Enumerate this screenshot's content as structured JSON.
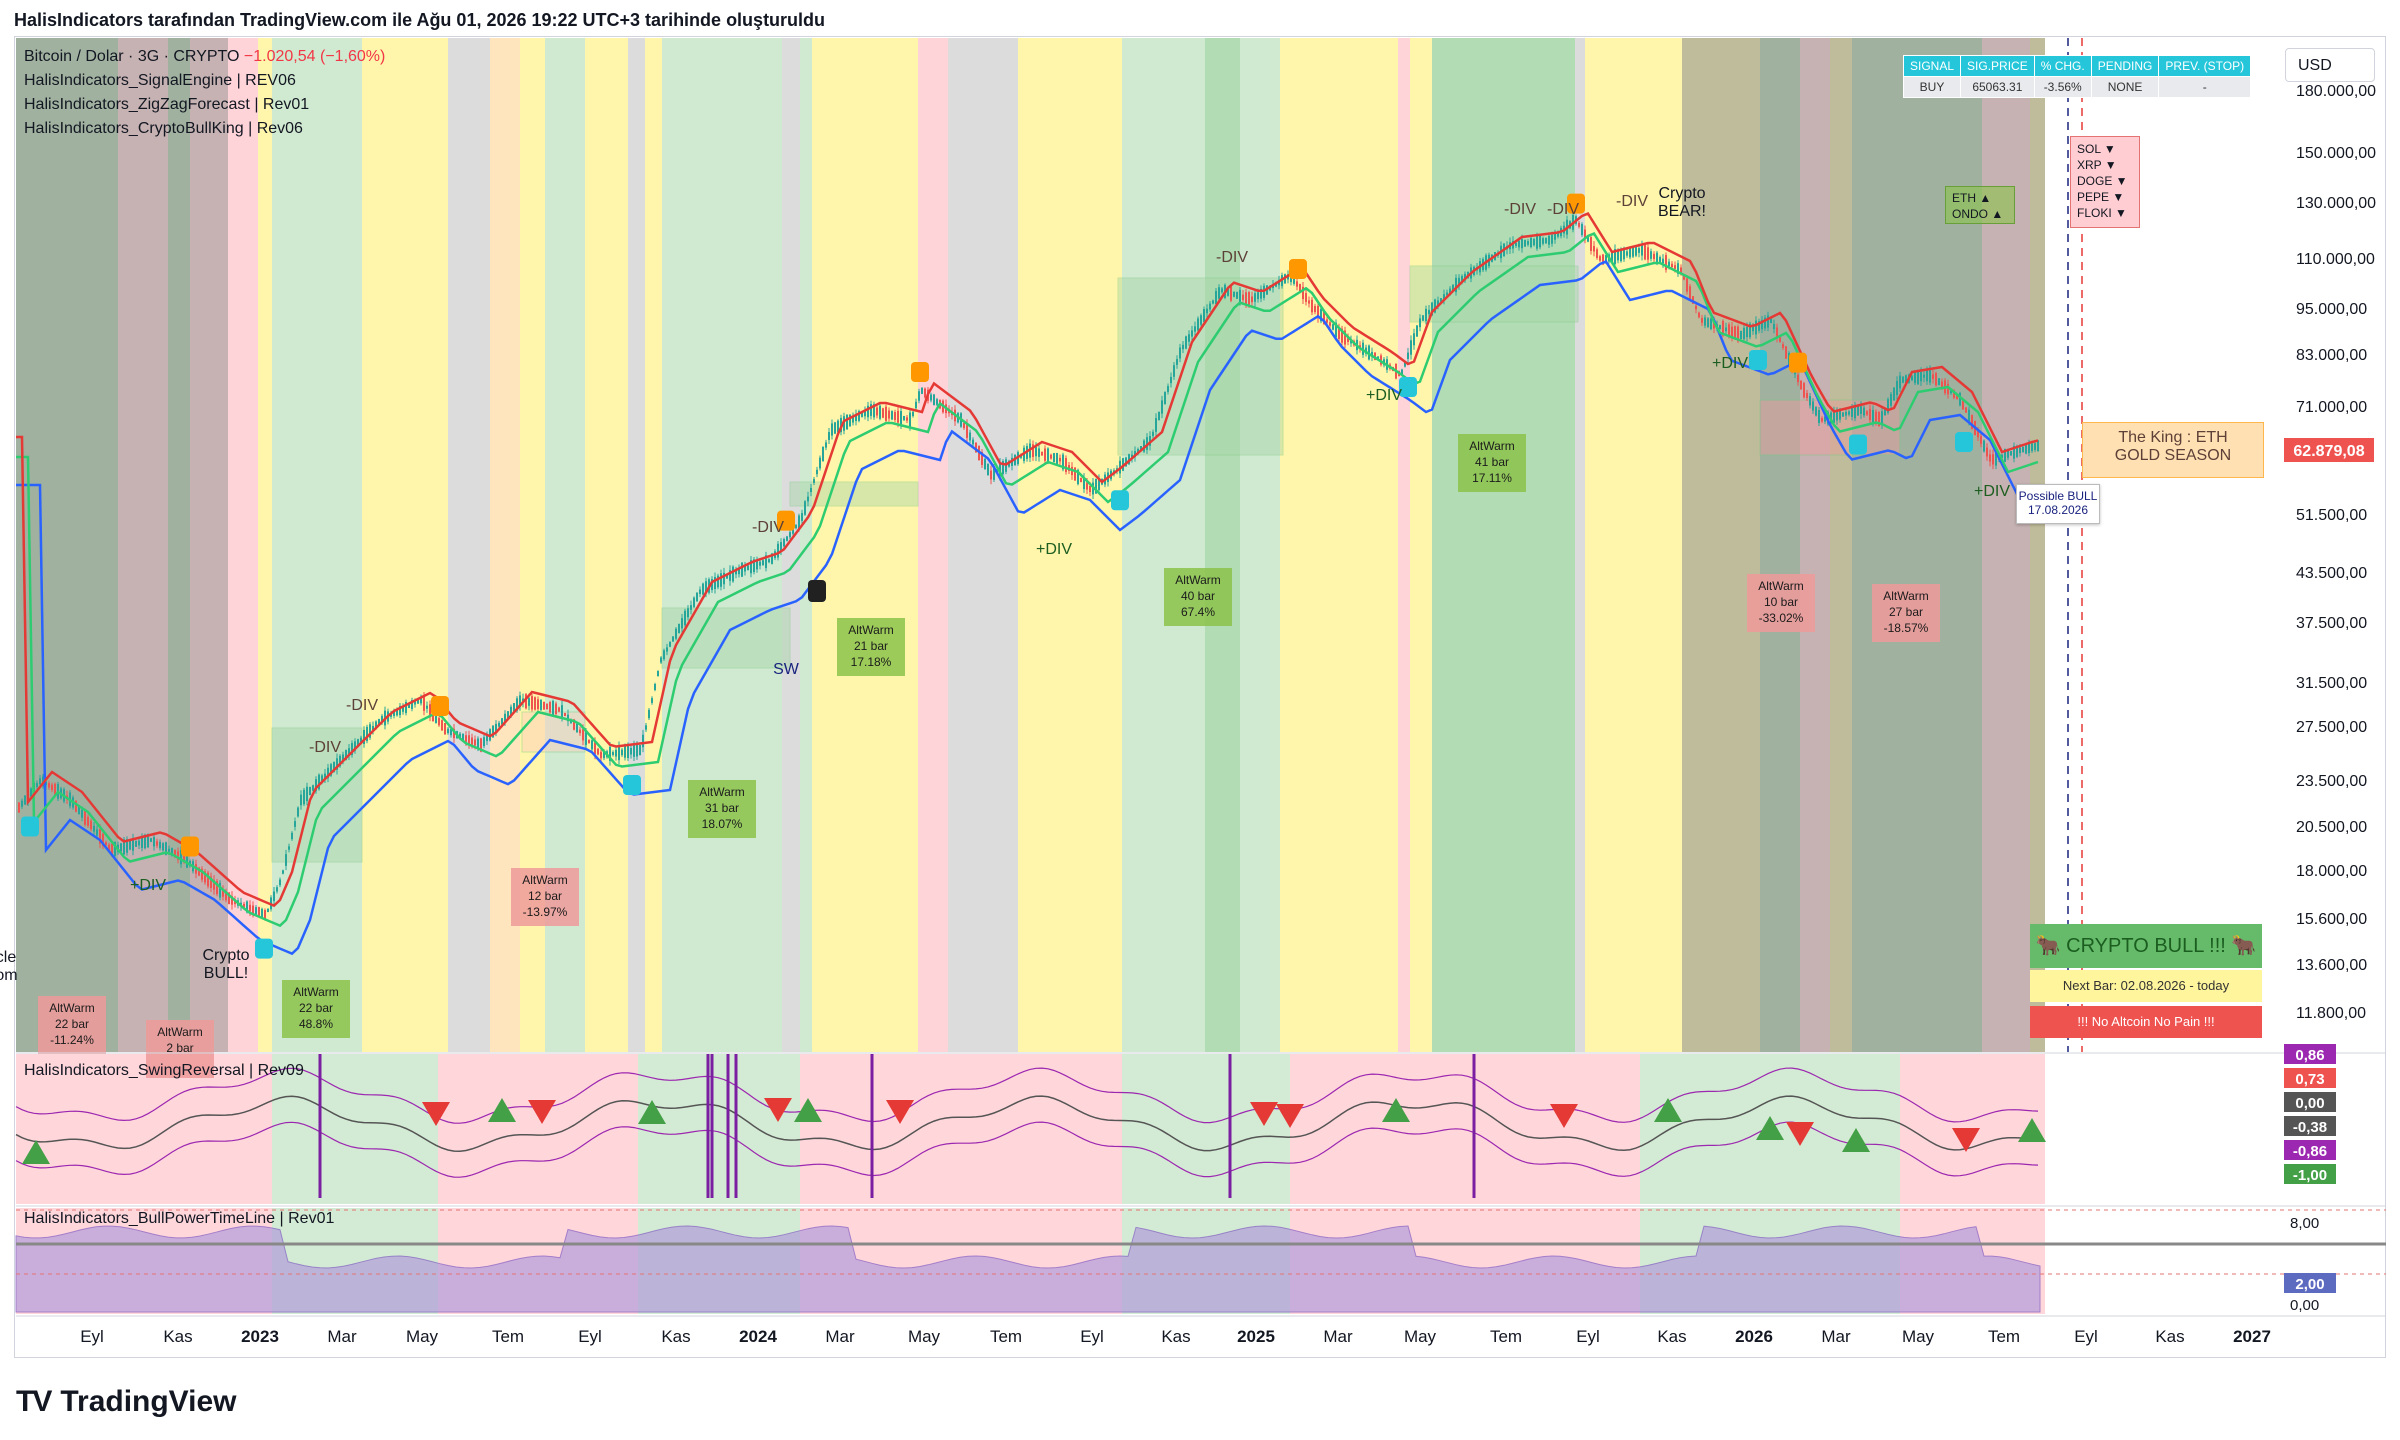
{
  "header": {
    "title": "HalisIndicators tarafından TradingView.com ile Ağu 01, 2026 19:22 UTC+3 tarihinde oluşturuldu"
  },
  "legend": {
    "symbol": "Bitcoin / Dolar · 3G · CRYPTO",
    "change": "−1.020,54 (−1,60%)",
    "ind1": "HalisIndicators_SignalEngine | REV06",
    "ind2": "HalisIndicators_ZigZagForecast | Rev01",
    "ind3": "HalisIndicators_CryptoBullKing | Rev06",
    "swing": "HalisIndicators_SwingReversal | Rev09",
    "bull": "HalisIndicators_BullPowerTimeLine | Rev01"
  },
  "currency_button": "USD",
  "signal_table": {
    "headers": [
      "SIGNAL",
      "SIG.PRICE",
      "% CHG.",
      "PENDING",
      "PREV. (STOP)"
    ],
    "row": [
      "BUY",
      "65063.31",
      "-3.56%",
      "NONE",
      "-"
    ]
  },
  "price_axis": {
    "labels": [
      "180.000,00",
      "150.000,00",
      "130.000,00",
      "110.000,00",
      "95.000,00",
      "83.000,00",
      "71.000,00",
      "62.879,08",
      "51.500,00",
      "43.500,00",
      "37.500,00",
      "31.500,00",
      "27.500,00",
      "23.500,00",
      "20.500,00",
      "18.000,00",
      "15.600,00",
      "13.600,00",
      "11.800,00"
    ],
    "current_price": "62.879,08"
  },
  "swing_axis": {
    "labels": [
      "0,86",
      "0,73",
      "0,00",
      "-0,38",
      "-0,86",
      "-1,00"
    ]
  },
  "bull_axis": {
    "labels": [
      "8,00",
      "2,00",
      "0,00"
    ]
  },
  "time_axis": [
    "Eyl",
    "Kas",
    "2023",
    "Mar",
    "May",
    "Tem",
    "Eyl",
    "Kas",
    "2024",
    "Mar",
    "May",
    "Tem",
    "Eyl",
    "Kas",
    "2025",
    "Mar",
    "May",
    "Tem",
    "Eyl",
    "Kas",
    "2026",
    "Mar",
    "May",
    "Tem",
    "Eyl",
    "Kas",
    "2027"
  ],
  "annotations": {
    "cycle_bottom": "ycle\nttom",
    "crypto_bull": "Crypto\nBULL!",
    "crypto_bear": "Crypto\nBEAR!",
    "div_minus": "-DIV",
    "div_plus": "+DIV",
    "sw": "SW",
    "king": "The King : ETH",
    "gold_season": "GOLD SEASON",
    "possible_bull": "Possible BULL",
    "possible_bull_date": "17.08.2026",
    "alt_down": "SOL ▼\nXRP ▼\nDOGE ▼\nPEPE ▼\nFLOKI ▼",
    "alt_up": "ETH ▲\nONDO ▲"
  },
  "altwarm": [
    {
      "title": "AltWarm",
      "bars": "22 bar",
      "pct": "-11.24%"
    },
    {
      "title": "AltWarm",
      "bars": "2 bar",
      "pct": ""
    },
    {
      "title": "AltWarm",
      "bars": "22 bar",
      "pct": "48.8%"
    },
    {
      "title": "AltWarm",
      "bars": "12 bar",
      "pct": "-13.97%"
    },
    {
      "title": "AltWarm",
      "bars": "31 bar",
      "pct": "18.07%"
    },
    {
      "title": "AltWarm",
      "bars": "21 bar",
      "pct": "17.18%"
    },
    {
      "title": "AltWarm",
      "bars": "40 bar",
      "pct": "67.4%"
    },
    {
      "title": "AltWarm",
      "bars": "41 bar",
      "pct": "17.11%"
    },
    {
      "title": "AltWarm",
      "bars": "10 bar",
      "pct": "-33.02%"
    },
    {
      "title": "AltWarm",
      "bars": "27 bar",
      "pct": "-18.57%"
    }
  ],
  "status_panel": {
    "bull": "🐂 CRYPTO BULL !!! 🐂",
    "next_bar": "Next Bar:  02.08.2026 - today",
    "no_pain": "!!! No Altcoin No Pain !!!"
  },
  "brand": "TradingView",
  "colors": {
    "up": "#26a69a",
    "down": "#ef5350",
    "bull_line": "#2ecc71",
    "bear_line": "#e53935",
    "blue_line": "#2962ff"
  }
}
